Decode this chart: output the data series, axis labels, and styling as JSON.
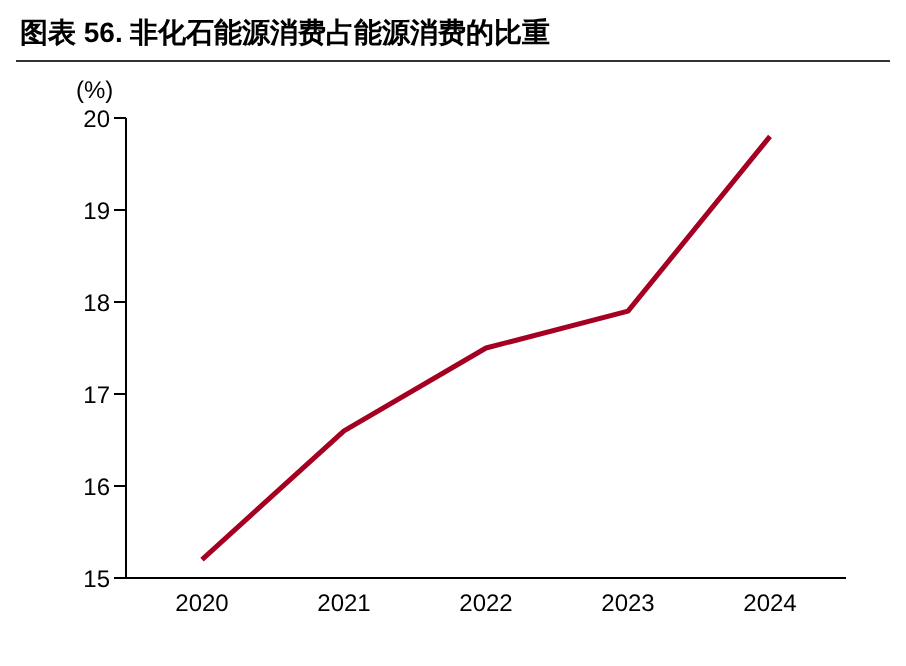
{
  "chart_data": {
    "type": "line",
    "title": "图表 56. 非化石能源消费占能源消费的比重",
    "ylabel": "(%)",
    "categories": [
      "2020",
      "2021",
      "2022",
      "2023",
      "2024"
    ],
    "series": [
      {
        "color": "#a50021",
        "values": [
          15.2,
          16.6,
          17.5,
          17.9,
          19.8
        ]
      }
    ],
    "ylim": [
      15,
      20
    ],
    "yticks": [
      15,
      16,
      17,
      18,
      19,
      20
    ],
    "grid": false,
    "marker": "none",
    "line_style": "solid"
  }
}
